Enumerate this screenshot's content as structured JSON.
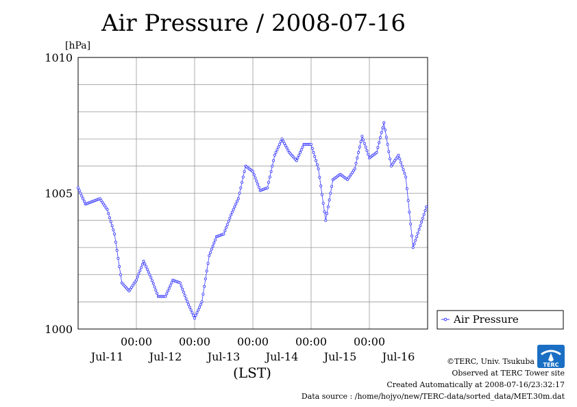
{
  "chart_data": {
    "type": "line",
    "title": "Air Pressure / 2008-07-16",
    "ylabel": "[hPa]",
    "xlabel": "(LST)",
    "ylim": [
      1000,
      1010
    ],
    "yticks": [
      "1010",
      "1005",
      "1000"
    ],
    "x_tick_time_labels": [
      "00:00",
      "00:00",
      "00:00",
      "00:00",
      "00:00"
    ],
    "x_day_labels": [
      "Jul-11",
      "Jul-12",
      "Jul-13",
      "Jul-14",
      "Jul-15",
      "Jul-16"
    ],
    "grid": true,
    "legend_position": "right",
    "series": [
      {
        "name": "Air Pressure",
        "color": "#3333ff",
        "x_hours": [
          0,
          3,
          6,
          9,
          12,
          15,
          18,
          21,
          24,
          27,
          30,
          33,
          36,
          39,
          42,
          45,
          48,
          51,
          54,
          57,
          60,
          63,
          66,
          69,
          72,
          75,
          78,
          81,
          84,
          87,
          90,
          93,
          96,
          99,
          102,
          105,
          108,
          111,
          114,
          117,
          120,
          123,
          126,
          129,
          132,
          135,
          138,
          141,
          143.5
        ],
        "values": [
          1005.2,
          1004.6,
          1004.7,
          1004.8,
          1004.4,
          1003.5,
          1001.7,
          1001.4,
          1001.8,
          1002.5,
          1001.9,
          1001.2,
          1001.2,
          1001.8,
          1001.7,
          1001.0,
          1000.4,
          1001.0,
          1002.7,
          1003.4,
          1003.5,
          1004.2,
          1004.8,
          1006.0,
          1005.8,
          1005.1,
          1005.2,
          1006.4,
          1007.0,
          1006.5,
          1006.2,
          1006.8,
          1006.8,
          1005.9,
          1004.0,
          1005.5,
          1005.7,
          1005.5,
          1005.9,
          1007.1,
          1006.3,
          1006.5,
          1007.6,
          1006.0,
          1006.4,
          1005.6,
          1003.0,
          1003.8,
          1004.5
        ]
      }
    ]
  },
  "footer": {
    "copyright": "©TERC, Univ. Tsukuba",
    "observed": "Observed at TERC Tower site",
    "created": "Created Automatically at 2008-07-16/23:32:17",
    "source": "Data source : /home/hojyo/new/TERC-data/sorted_data/MET.30m.dat"
  }
}
